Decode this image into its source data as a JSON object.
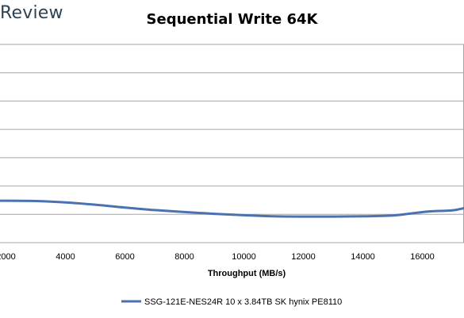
{
  "header": {
    "logo_text": "Review"
  },
  "chart_data": {
    "type": "line",
    "title": "Sequential Write 64K",
    "xlabel": "Throughput (MB/s)",
    "ylabel": "",
    "xlim": [
      1800,
      17400
    ],
    "ylim": [
      0,
      7
    ],
    "x_ticks": [
      2000,
      4000,
      6000,
      8000,
      10000,
      12000,
      14000,
      16000
    ],
    "y_gridlines": 7,
    "grid": true,
    "legend_position": "bottom",
    "series": [
      {
        "name": "SSG-121E-NES24R 10 x 3.84TB SK hynix PE8110",
        "color": "#4a72b0",
        "points": [
          [
            1800,
            1.48
          ],
          [
            3000,
            1.47
          ],
          [
            4000,
            1.42
          ],
          [
            5000,
            1.34
          ],
          [
            6000,
            1.24
          ],
          [
            7000,
            1.15
          ],
          [
            8000,
            1.08
          ],
          [
            9000,
            1.02
          ],
          [
            10000,
            0.97
          ],
          [
            11000,
            0.93
          ],
          [
            12000,
            0.92
          ],
          [
            13000,
            0.92
          ],
          [
            14000,
            0.93
          ],
          [
            15000,
            0.96
          ],
          [
            15600,
            1.03
          ],
          [
            16200,
            1.1
          ],
          [
            17000,
            1.14
          ],
          [
            17400,
            1.22
          ]
        ]
      }
    ]
  }
}
